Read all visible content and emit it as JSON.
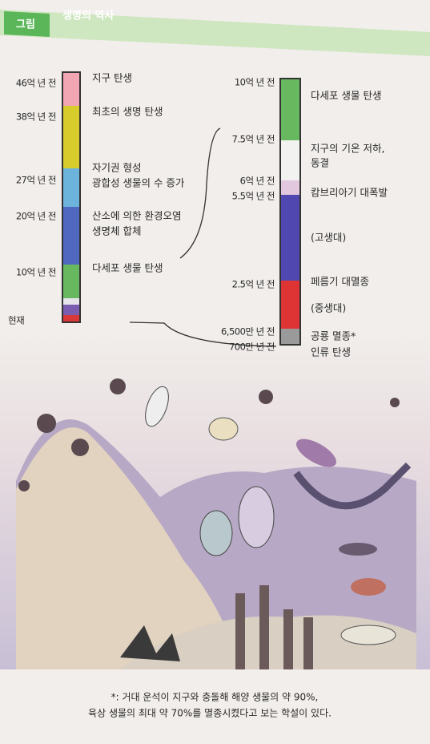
{
  "header": {
    "label": "그림",
    "title": "생명의 역사"
  },
  "left_timeline": {
    "times": [
      "46억 년 전",
      "38억 년 전",
      "27억 년 전",
      "20억 년 전",
      "10억 년 전",
      "현재"
    ],
    "events": [
      [
        "지구 탄생"
      ],
      [
        "최초의 생명 탄생"
      ],
      [
        "자기권 형성",
        "광합성 생물의 수 증가"
      ],
      [
        "산소에 의한 환경오염",
        "생명체 합체"
      ],
      [
        "다세포 생물 탄생"
      ]
    ]
  },
  "right_timeline": {
    "times": [
      "10억 년 전",
      "7.5억 년 전",
      "6억 년 전",
      "5.5억 년 전",
      "2.5억 년 전",
      "6,500만 년 전",
      "700만 년 전"
    ],
    "events": [
      [
        "다세포 생물 탄생"
      ],
      [
        "지구의 기온 저하,",
        "동결"
      ],
      [
        "캄브리아기 대폭발"
      ],
      [
        "(고생대)"
      ],
      [
        "페름기 대멸종"
      ],
      [
        "(중생대)"
      ],
      [
        "공룡 멸종*"
      ],
      [
        "인류 탄생"
      ]
    ]
  },
  "footnote": [
    "*: 거대 운석이 지구와 충돌해 해양 생물의 약 90%,",
    "육상 생물의 최대 약 70%를 멸종시켰다고 보는 학설이 있다."
  ]
}
